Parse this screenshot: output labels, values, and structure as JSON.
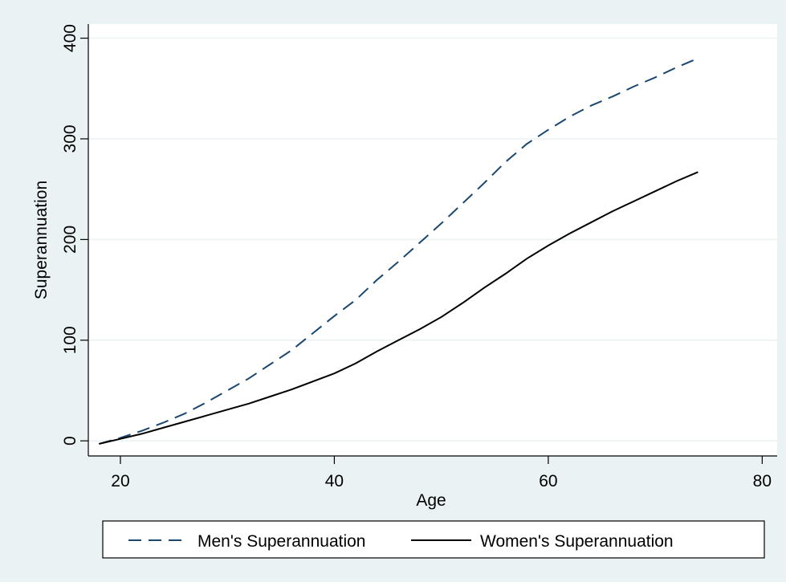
{
  "chart_data": {
    "type": "line",
    "x": [
      18,
      20,
      22,
      24,
      26,
      28,
      30,
      32,
      34,
      36,
      38,
      40,
      42,
      44,
      46,
      48,
      50,
      52,
      54,
      56,
      58,
      60,
      62,
      64,
      66,
      68,
      70,
      72,
      74
    ],
    "series": [
      {
        "name": "Men's Superannuation",
        "color": "#1a476f",
        "dash": "dashed",
        "values": [
          -3,
          3,
          10,
          18,
          27,
          38,
          50,
          62,
          76,
          90,
          107,
          124,
          140,
          160,
          178,
          197,
          216,
          236,
          256,
          277,
          295,
          309,
          322,
          333,
          342,
          352,
          361,
          371,
          380
        ]
      },
      {
        "name": "Women's Superannuation",
        "color": "#000000",
        "dash": "solid",
        "values": [
          -3,
          2,
          7,
          13,
          19,
          25,
          31,
          37,
          44,
          51,
          59,
          67,
          77,
          89,
          100,
          111,
          123,
          137,
          152,
          166,
          181,
          194,
          206,
          217,
          228,
          238,
          248,
          258,
          267
        ]
      }
    ],
    "xlabel": "Age",
    "ylabel": "Superannuation",
    "xlim": [
      17,
      81.4
    ],
    "xticks": [
      20,
      40,
      60,
      80
    ],
    "ylim": [
      -15,
      414
    ],
    "yticks": [
      0,
      100,
      200,
      300,
      400
    ],
    "grid": true,
    "legend": "bottom"
  }
}
